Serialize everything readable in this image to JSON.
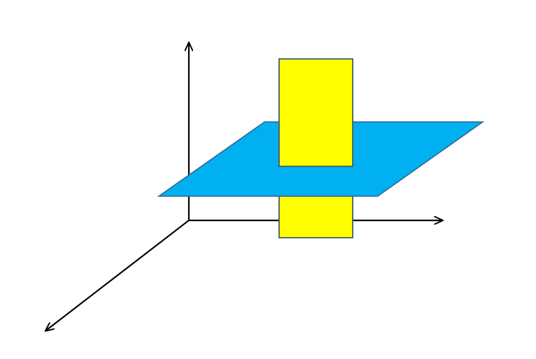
{
  "diagram": {
    "background": "#ffffff",
    "axes": {
      "color": "#000000",
      "count": 3
    },
    "plane": {
      "fill": "#00b0f0",
      "stroke": "#2f6fa0"
    },
    "rectangle": {
      "fill": "#ffff00",
      "stroke": "#3f5f5f"
    }
  }
}
